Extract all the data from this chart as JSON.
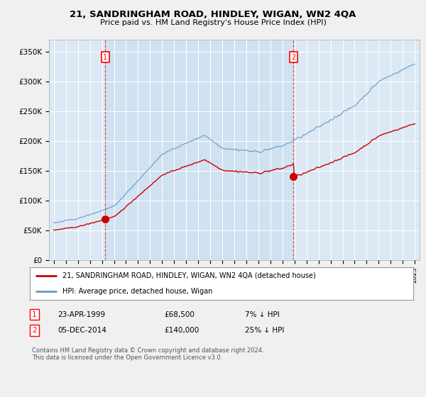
{
  "title": "21, SANDRINGHAM ROAD, HINDLEY, WIGAN, WN2 4QA",
  "subtitle": "Price paid vs. HM Land Registry's House Price Index (HPI)",
  "legend_line1": "21, SANDRINGHAM ROAD, HINDLEY, WIGAN, WN2 4QA (detached house)",
  "legend_line2": "HPI: Average price, detached house, Wigan",
  "table_row1": [
    "1",
    "23-APR-1999",
    "£68,500",
    "7% ↓ HPI"
  ],
  "table_row2": [
    "2",
    "05-DEC-2014",
    "£140,000",
    "25% ↓ HPI"
  ],
  "footnote": "Contains HM Land Registry data © Crown copyright and database right 2024.\nThis data is licensed under the Open Government Licence v3.0.",
  "ylabel_ticks": [
    "£0",
    "£50K",
    "£100K",
    "£150K",
    "£200K",
    "£250K",
    "£300K",
    "£350K"
  ],
  "ytick_values": [
    0,
    50000,
    100000,
    150000,
    200000,
    250000,
    300000,
    350000
  ],
  "ylim": [
    0,
    370000
  ],
  "price_color": "#cc0000",
  "hpi_color": "#6699cc",
  "sale1_price": 68500,
  "sale2_price": 140000,
  "sale1_year": 1999.29,
  "sale2_year": 2014.92,
  "background_color": "#f0f0f0",
  "plot_bg_color": "#dce9f5",
  "grid_color": "#ffffff"
}
